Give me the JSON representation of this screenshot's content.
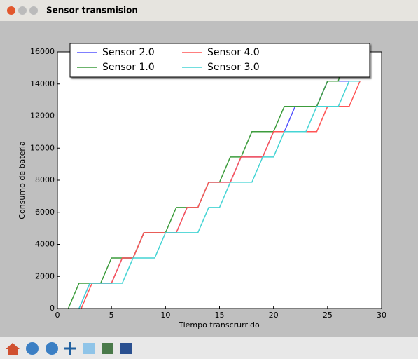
{
  "window": {
    "title": "Sensor transmision"
  },
  "chart_data": {
    "type": "line",
    "xlabel": "Tiempo transcrurrido",
    "ylabel": "Consumo de bateria",
    "xlim": [
      0,
      30
    ],
    "xticks": [
      0,
      5,
      10,
      15,
      20,
      25,
      30
    ],
    "ylim": [
      0,
      16000
    ],
    "yticks": [
      0,
      2000,
      4000,
      6000,
      8000,
      10000,
      12000,
      14000,
      16000
    ],
    "legend": "upper center",
    "legend_columns": 3,
    "series": [
      {
        "name": "Sensor 2.0",
        "color": "#5555ff",
        "x": [
          2,
          3,
          5,
          6,
          7,
          8,
          11,
          12,
          13,
          14,
          16,
          17,
          19,
          20,
          21,
          22,
          24,
          25,
          28
        ],
        "values": [
          0,
          1575,
          1575,
          3150,
          3150,
          4725,
          4725,
          6300,
          6300,
          7875,
          7875,
          9450,
          9450,
          11025,
          11025,
          12600,
          12600,
          14175,
          14175
        ]
      },
      {
        "name": "Sensor 1.0",
        "color": "#3c9c3c",
        "x": [
          1,
          2,
          4,
          5,
          7,
          8,
          10,
          11,
          13,
          14,
          15,
          16,
          17,
          18,
          20,
          21,
          24,
          25,
          26,
          26.5
        ],
        "values": [
          0,
          1575,
          1575,
          3150,
          3150,
          4725,
          4725,
          6300,
          6300,
          7875,
          7875,
          9450,
          9450,
          11025,
          11025,
          12600,
          12600,
          14175,
          14175,
          15750
        ]
      },
      {
        "name": "Sensor 4.0",
        "color": "#ff5555",
        "x": [
          2.2,
          3.2,
          5,
          6,
          7,
          8,
          11,
          12,
          13,
          14,
          16,
          17,
          19,
          20,
          21,
          22,
          24,
          25,
          27,
          28
        ],
        "values": [
          0,
          1575,
          1575,
          3150,
          3150,
          4725,
          4725,
          6300,
          6300,
          7875,
          7875,
          9450,
          9450,
          11025,
          11025,
          11025,
          11025,
          12600,
          12600,
          14175
        ]
      },
      {
        "name": "Sensor 3.0",
        "color": "#44d4d4",
        "x": [
          2,
          3,
          6,
          7,
          9,
          10,
          13,
          14,
          15,
          16,
          18,
          19,
          20,
          21,
          23,
          24,
          26,
          27,
          28
        ],
        "values": [
          0,
          1575,
          1575,
          3150,
          3150,
          4725,
          4725,
          6300,
          6300,
          7875,
          7875,
          9450,
          9450,
          11025,
          11025,
          12600,
          12600,
          14175,
          14175
        ]
      }
    ]
  }
}
